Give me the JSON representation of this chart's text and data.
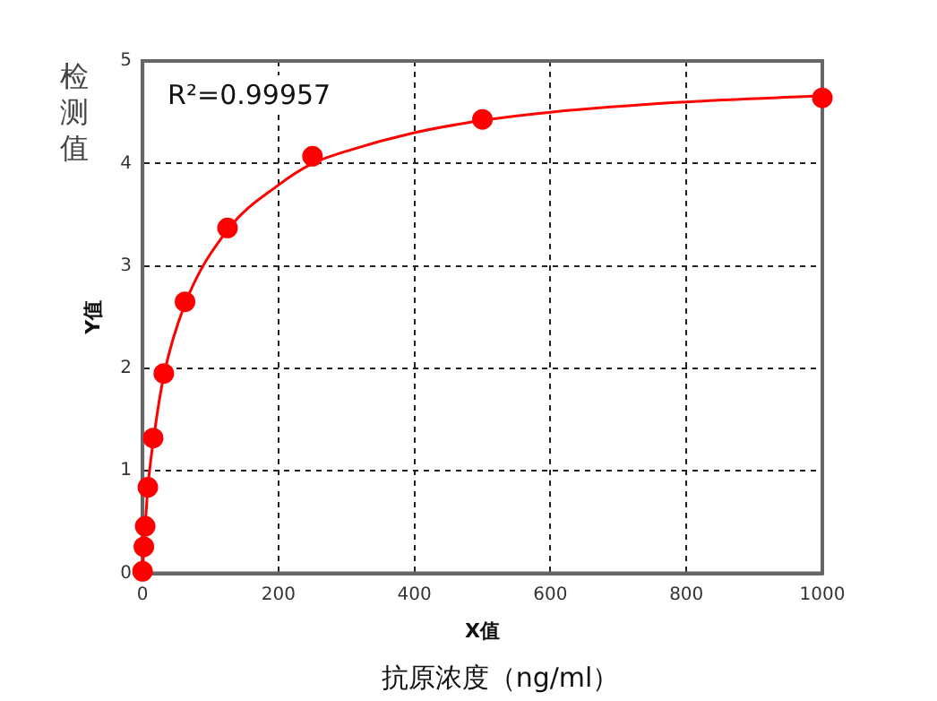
{
  "chart_data": {
    "type": "scatter",
    "xlabel": "X值",
    "ylabel": "Y值",
    "annotations": [
      "R²=0.99957",
      "检测值",
      "抗原浓度（ng/ml）"
    ],
    "xlim": [
      0,
      1000
    ],
    "xticks": [
      0,
      200,
      400,
      600,
      800,
      1000
    ],
    "ylim": [
      0,
      5
    ],
    "yticks": [
      0,
      1,
      2,
      3,
      4,
      5
    ],
    "grid": true,
    "legend": false,
    "series": [
      {
        "type": "line",
        "color": "#ff0000",
        "marker": "none",
        "x": [
          0,
          2,
          4,
          8,
          16,
          31,
          62,
          125,
          200,
          250,
          300,
          400,
          500,
          600,
          800,
          1000
        ],
        "values": [
          0,
          0.27,
          0.47,
          0.85,
          1.3,
          1.92,
          2.62,
          3.35,
          3.79,
          4.0,
          4.12,
          4.3,
          4.42,
          4.5,
          4.6,
          4.66
        ]
      },
      {
        "type": "scatter",
        "color": "#ff0000",
        "marker": "circle",
        "x": [
          0,
          1.95,
          3.9,
          7.8,
          15.6,
          31.25,
          62.5,
          125,
          250,
          500,
          1000
        ],
        "values": [
          0.02,
          0.26,
          0.46,
          0.84,
          1.32,
          1.95,
          2.65,
          3.37,
          4.07,
          4.43,
          4.64
        ]
      }
    ]
  }
}
